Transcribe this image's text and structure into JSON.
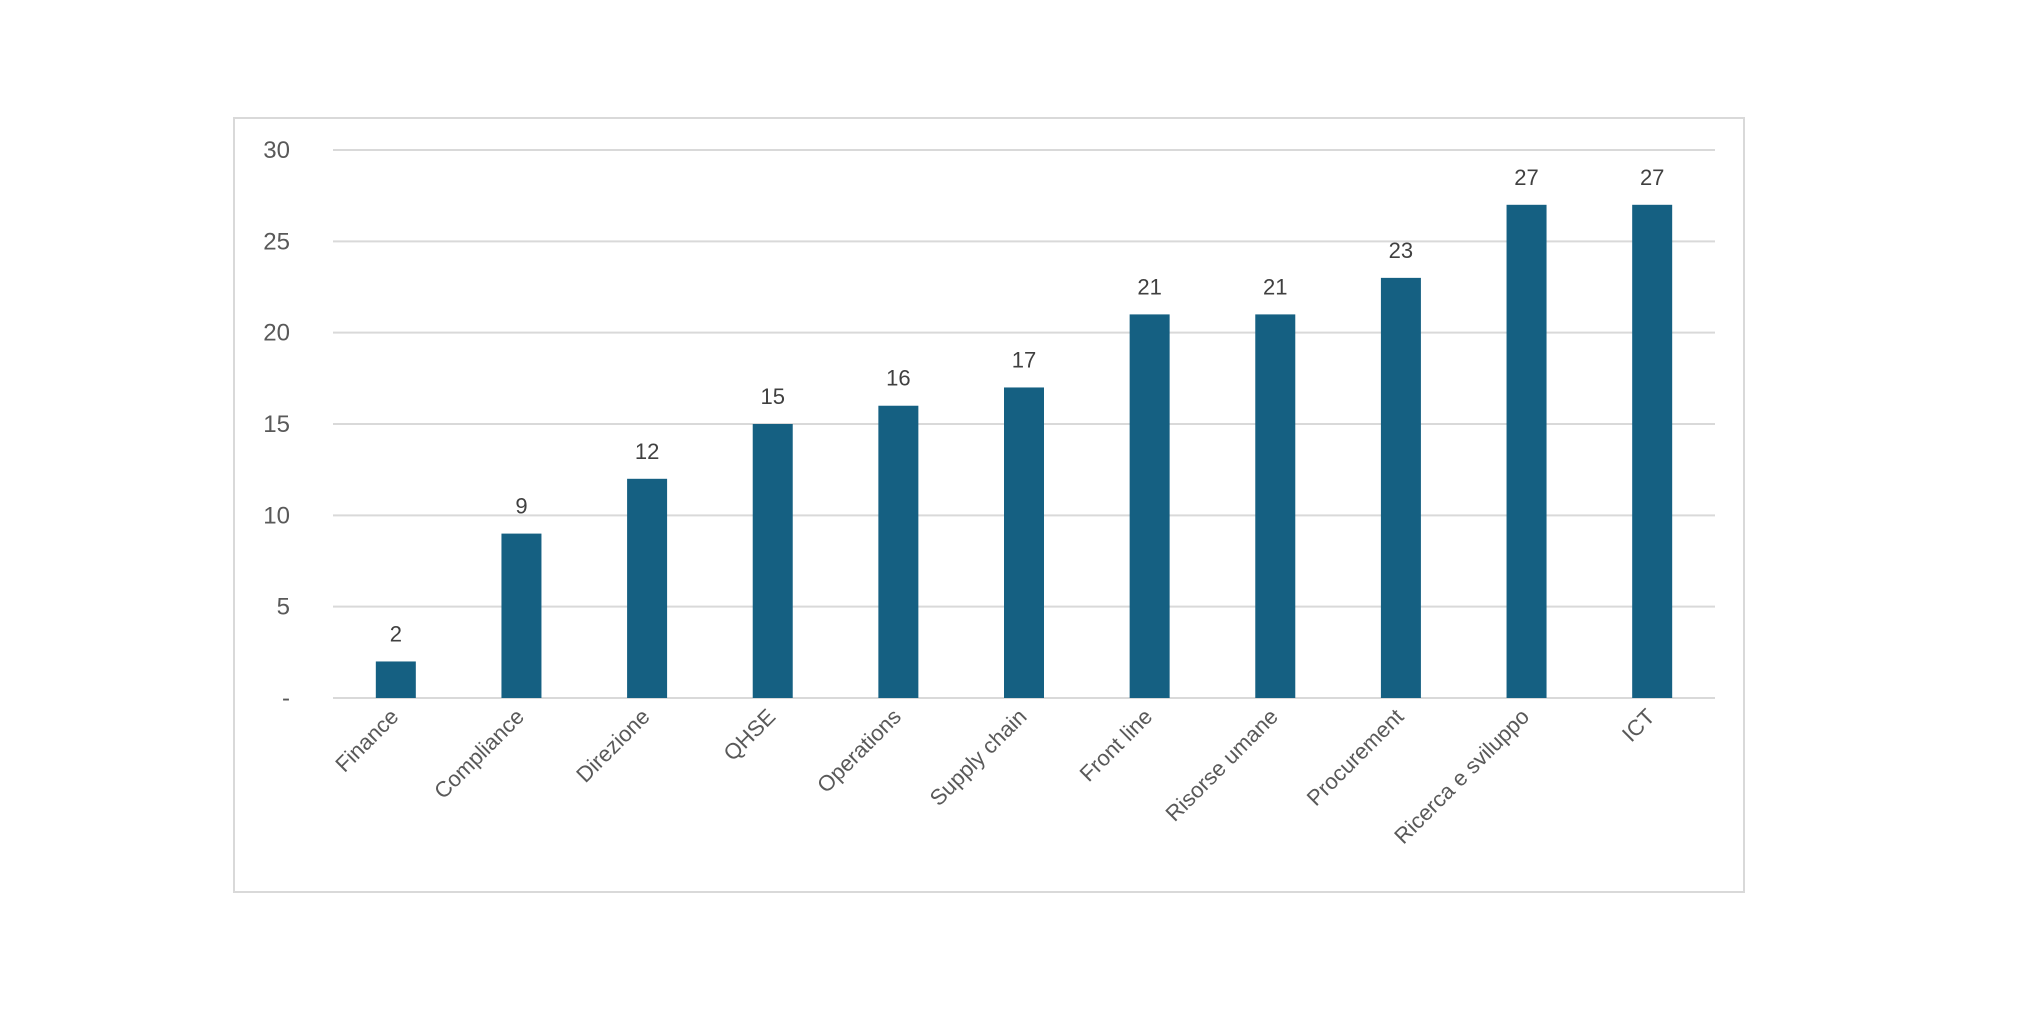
{
  "chart_data": {
    "type": "bar",
    "categories": [
      "Finance",
      "Compliance",
      "Direzione",
      "QHSE",
      "Operations",
      "Supply chain",
      "Front line",
      "Risorse umane",
      "Procurement",
      "Ricerca e sviluppo",
      "ICT"
    ],
    "values": [
      2,
      9,
      12,
      15,
      16,
      17,
      21,
      21,
      23,
      27,
      27
    ],
    "title": "",
    "xlabel": "",
    "ylabel": "",
    "ylim": [
      0,
      30
    ],
    "yticks": [
      0,
      5,
      10,
      15,
      20,
      25,
      30
    ],
    "ytick_labels": [
      "-",
      "5",
      "10",
      "15",
      "20",
      "25",
      "30"
    ],
    "grid": true,
    "legend": "none",
    "bar_color": "#156082",
    "data_labels": true
  }
}
